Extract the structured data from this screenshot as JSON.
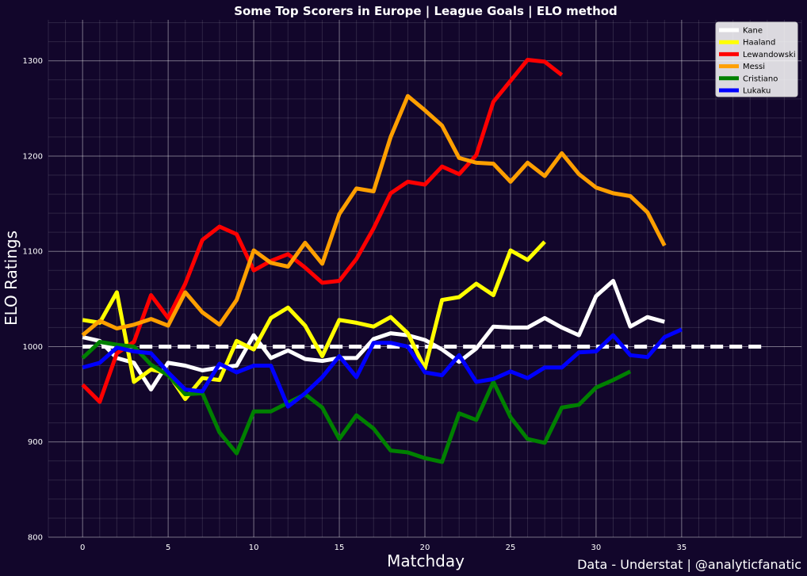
{
  "chart_data": {
    "type": "line",
    "title": "Some Top Scorers in Europe | League Goals | ELO method",
    "xlabel": "Matchday",
    "ylabel": "ELO Ratings",
    "footer": "Data - Understat | @analyticfanatic",
    "xlim": [
      -2,
      42
    ],
    "ylim": [
      800,
      1343
    ],
    "x_ticks": [
      0,
      5,
      10,
      15,
      20,
      25,
      30,
      35
    ],
    "y_ticks": [
      800,
      900,
      1000,
      1100,
      1200,
      1300
    ],
    "grid": true,
    "legend_position": "top-right",
    "baseline": {
      "value": 1000,
      "x_start": 0,
      "x_end": 40,
      "color": "#ffffff",
      "style": "dashed"
    },
    "series": [
      {
        "name": "Kane",
        "color": "#ffffff",
        "x": [
          0,
          1,
          2,
          3,
          4,
          5,
          6,
          7,
          8,
          9,
          10,
          11,
          12,
          13,
          14,
          15,
          16,
          17,
          18,
          19,
          20,
          21,
          22,
          23,
          24,
          25,
          26,
          27,
          28,
          29,
          30,
          31,
          32,
          33,
          34
        ],
        "values": [
          1010,
          1006,
          988,
          983,
          955,
          983,
          980,
          975,
          978,
          980,
          1012,
          988,
          996,
          987,
          985,
          988,
          988,
          1008,
          1014,
          1012,
          1007,
          997,
          984,
          998,
          1021,
          1020,
          1020,
          1030,
          1020,
          1012,
          1053,
          1069,
          1021,
          1031,
          1026
        ]
      },
      {
        "name": "Haaland",
        "color": "#ffff00",
        "x": [
          0,
          1,
          2,
          3,
          4,
          5,
          6,
          7,
          8,
          9,
          10,
          11,
          12,
          13,
          14,
          15,
          16,
          17,
          18,
          19,
          20,
          21,
          22,
          23,
          24,
          25,
          26,
          27
        ],
        "values": [
          1028,
          1025,
          1057,
          963,
          976,
          972,
          945,
          967,
          965,
          1006,
          997,
          1030,
          1041,
          1022,
          990,
          1028,
          1025,
          1021,
          1031,
          1014,
          977,
          1049,
          1052,
          1066,
          1054,
          1101,
          1091,
          1110
        ]
      },
      {
        "name": "Lewandowski",
        "color": "#ff0000",
        "x": [
          0,
          1,
          2,
          3,
          4,
          5,
          6,
          7,
          8,
          9,
          10,
          11,
          12,
          13,
          14,
          15,
          16,
          17,
          18,
          19,
          20,
          21,
          22,
          23,
          24,
          25,
          26,
          27,
          28
        ],
        "values": [
          960,
          942,
          993,
          1005,
          1054,
          1030,
          1066,
          1112,
          1126,
          1118,
          1080,
          1090,
          1097,
          1083,
          1067,
          1069,
          1092,
          1124,
          1161,
          1173,
          1170,
          1189,
          1181,
          1201,
          1257,
          1279,
          1301,
          1299,
          1285
        ]
      },
      {
        "name": "Messi",
        "color": "#ff9f00",
        "x": [
          0,
          1,
          2,
          3,
          4,
          5,
          6,
          7,
          8,
          9,
          10,
          11,
          12,
          13,
          14,
          15,
          16,
          17,
          18,
          19,
          20,
          21,
          22,
          23,
          24,
          25,
          26,
          27,
          28,
          29,
          30,
          31,
          32,
          33,
          34
        ],
        "values": [
          1012,
          1027,
          1019,
          1023,
          1029,
          1022,
          1057,
          1036,
          1023,
          1049,
          1101,
          1088,
          1084,
          1109,
          1087,
          1139,
          1166,
          1163,
          1220,
          1263,
          1248,
          1232,
          1198,
          1193,
          1192,
          1173,
          1193,
          1179,
          1203,
          1181,
          1167,
          1161,
          1158,
          1141,
          1106
        ]
      },
      {
        "name": "Cristiano",
        "color": "#008000",
        "x": [
          0,
          1,
          2,
          3,
          4,
          5,
          6,
          7,
          8,
          9,
          10,
          11,
          12,
          13,
          14,
          15,
          16,
          17,
          18,
          19,
          20,
          21,
          22,
          23,
          24,
          25,
          26,
          27,
          28,
          29,
          30,
          31,
          32
        ],
        "values": [
          988,
          1005,
          1002,
          1000,
          981,
          970,
          950,
          951,
          910,
          888,
          932,
          932,
          941,
          950,
          936,
          903,
          928,
          914,
          891,
          889,
          883,
          879,
          930,
          923,
          963,
          926,
          903,
          899,
          936,
          939,
          957,
          965,
          974
        ]
      },
      {
        "name": "Lukaku",
        "color": "#0000ff",
        "x": [
          0,
          1,
          2,
          3,
          4,
          5,
          6,
          7,
          8,
          9,
          10,
          11,
          12,
          13,
          14,
          15,
          16,
          17,
          18,
          19,
          20,
          21,
          22,
          23,
          24,
          25,
          26,
          27,
          28,
          29,
          30,
          31,
          32,
          33,
          34,
          35
        ],
        "values": [
          978,
          983,
          999,
          995,
          993,
          973,
          955,
          953,
          982,
          973,
          980,
          980,
          937,
          951,
          968,
          990,
          968,
          1004,
          1004,
          1000,
          973,
          970,
          991,
          963,
          966,
          974,
          967,
          978,
          978,
          994,
          995,
          1012,
          991,
          989,
          1010,
          1018
        ]
      }
    ]
  }
}
